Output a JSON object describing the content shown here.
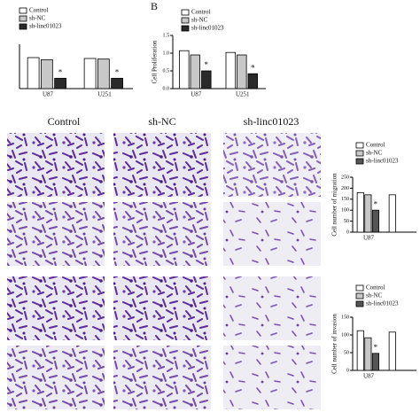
{
  "panel_labels": {
    "b": "B"
  },
  "column_labels": [
    "Control",
    "sh-NC",
    "sh-linc01023"
  ],
  "chart_data": [
    {
      "type": "bar",
      "categories": [
        "U87",
        "U251"
      ],
      "ylim": [
        0,
        1.5
      ],
      "series": [
        {
          "name": "Control",
          "color": "#ffffff",
          "values": [
            1.05,
            1.02
          ]
        },
        {
          "name": "sh-NC",
          "color": "#c8c8c8",
          "values": [
            0.98,
            1.0
          ]
        },
        {
          "name": "sh-linc01023",
          "color": "#2a2a2a",
          "values": [
            0.35,
            0.35
          ],
          "significance": [
            "*",
            "*"
          ]
        }
      ]
    },
    {
      "type": "bar",
      "ylabel": "Cell Proliferation",
      "categories": [
        "U87",
        "U251"
      ],
      "ylim": [
        0,
        1.5
      ],
      "yticks": [
        {
          "value": 0,
          "label": "0.0"
        },
        {
          "value": 0.5,
          "label": "0.5"
        },
        {
          "value": 1,
          "label": "1.0"
        },
        {
          "value": 1.5,
          "label": "1.5"
        }
      ],
      "series": [
        {
          "name": "Control",
          "color": "#ffffff",
          "values": [
            1.07,
            1.02
          ]
        },
        {
          "name": "sh-NC",
          "color": "#c8c8c8",
          "values": [
            0.95,
            0.95
          ]
        },
        {
          "name": "sh-linc01023",
          "color": "#2a2a2a",
          "values": [
            0.5,
            0.42
          ],
          "significance": [
            "*",
            "*"
          ]
        }
      ]
    },
    {
      "type": "bar",
      "ylabel": "Cell number of migration",
      "categories": [
        "U87",
        null
      ],
      "ylim": [
        0,
        250
      ],
      "yticks": [
        0,
        50,
        100,
        150,
        200,
        250
      ],
      "series": [
        {
          "name": "Control",
          "color": "#ffffff",
          "values": [
            180,
            170
          ]
        },
        {
          "name": "sh-NC",
          "color": "#c8c8c8",
          "values": [
            170,
            null
          ]
        },
        {
          "name": "sh-linc01023",
          "color": "#555555",
          "values": [
            100,
            null
          ],
          "significance": [
            "*",
            null
          ]
        }
      ]
    },
    {
      "type": "bar",
      "ylabel": "Cell number of invasion",
      "categories": [
        "U87",
        null
      ],
      "ylim": [
        0,
        150
      ],
      "yticks": [
        0,
        50,
        100,
        150
      ],
      "series": [
        {
          "name": "Control",
          "color": "#ffffff",
          "values": [
            112,
            108
          ]
        },
        {
          "name": "sh-NC",
          "color": "#c8c8c8",
          "values": [
            92,
            null
          ]
        },
        {
          "name": "sh-linc01023",
          "color": "#555555",
          "values": [
            48,
            null
          ],
          "significance": [
            "*",
            null
          ]
        }
      ]
    }
  ]
}
